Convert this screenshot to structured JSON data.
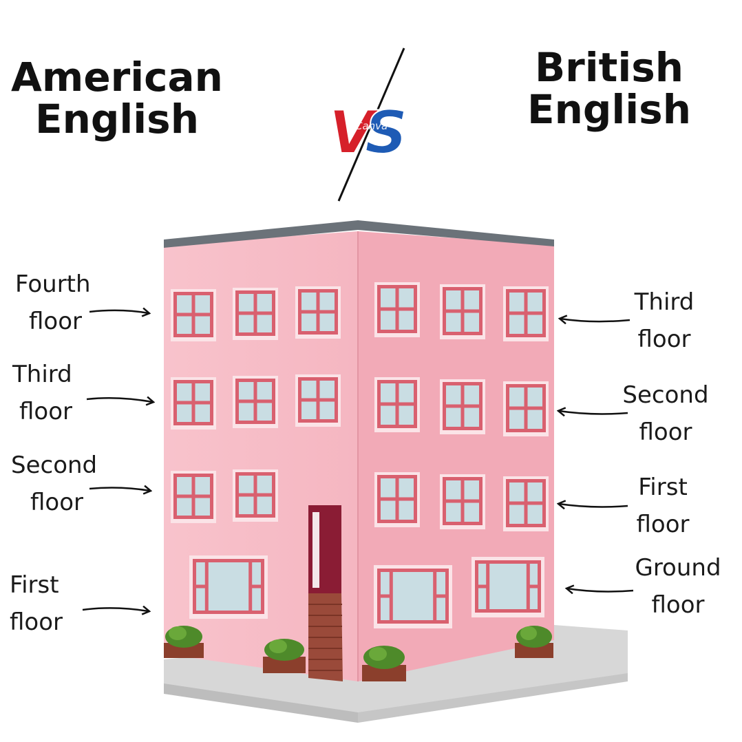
{
  "headings": {
    "american": [
      "American",
      "English"
    ],
    "british": [
      "British",
      "English"
    ]
  },
  "versus": {
    "letters": "VS",
    "watermark": "Canva",
    "colors": {
      "v": "#d6202a",
      "s": "#1e5bb5",
      "slash": "#111111"
    }
  },
  "american_labels": [
    {
      "line1": "Fourth",
      "line2": "floor"
    },
    {
      "line1": "Third",
      "line2": "floor"
    },
    {
      "line1": "Second",
      "line2": "floor"
    },
    {
      "line1": "First",
      "line2": "floor"
    }
  ],
  "british_labels": [
    {
      "line1": "Third",
      "line2": "floor"
    },
    {
      "line1": "Second",
      "line2": "floor"
    },
    {
      "line1": "First",
      "line2": "floor"
    },
    {
      "line1": "Ground",
      "line2": "floor"
    }
  ],
  "colors": {
    "wall_front": "#f7bcc6",
    "wall_side": "#f2aab7",
    "window_frame": "#d9606f",
    "window_glass": "#c9dde3",
    "roof": "#6b7279",
    "door": "#8a1c34",
    "steps": "#9a4a3a",
    "shrub": "#4e8a2a",
    "planter": "#8b3f2c",
    "pavement": "#d7d7d7"
  }
}
